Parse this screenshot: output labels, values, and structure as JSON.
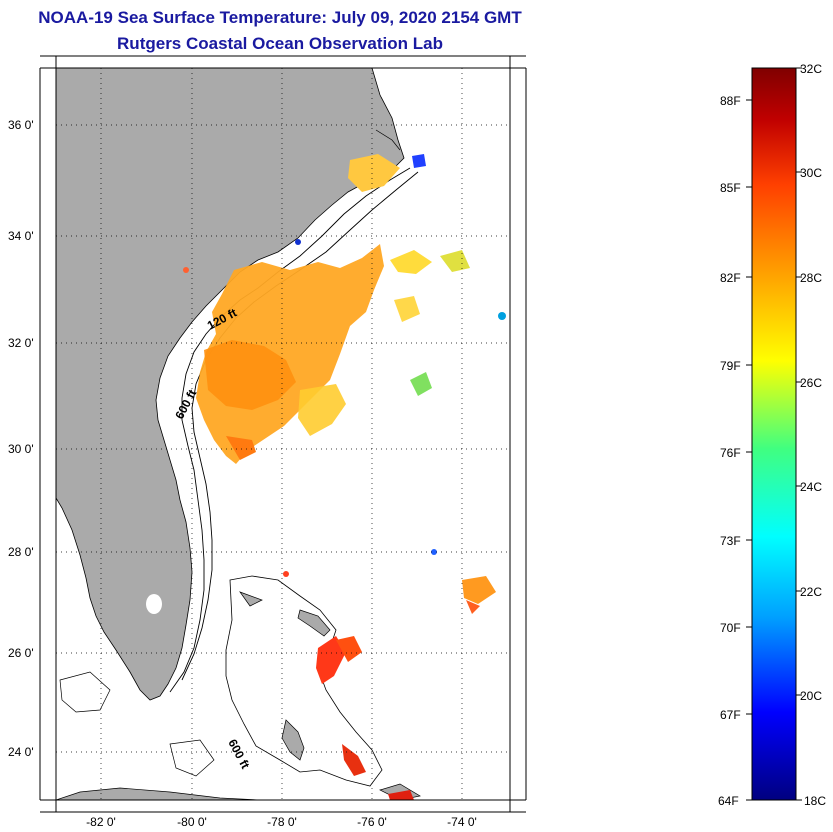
{
  "header": {
    "title": "NOAA-19 Sea Surface Temperature:  July 09, 2020 2154 GMT",
    "subtitle": "Rutgers Coastal Ocean Observation Lab"
  },
  "axes": {
    "lat_labels": [
      "36 0'",
      "34 0'",
      "32 0'",
      "30 0'",
      "28 0'",
      "26 0'",
      "24 0'"
    ],
    "lon_labels": [
      "-82 0'",
      "-80 0'",
      "-78 0'",
      "-76 0'",
      "-74 0'"
    ]
  },
  "contours": {
    "label_120": "120 ft",
    "label_600a": "600 ft",
    "label_600b": "600 ft"
  },
  "colorbar": {
    "celsius": [
      "32C",
      "30C",
      "28C",
      "26C",
      "24C",
      "22C",
      "20C",
      "18C"
    ],
    "fahrenheit": [
      "88F",
      "85F",
      "82F",
      "79F",
      "76F",
      "73F",
      "70F",
      "67F",
      "64F"
    ],
    "range_c": [
      18,
      32
    ],
    "palette": [
      "#000080",
      "#0000ff",
      "#00a0ff",
      "#00ffff",
      "#40ff80",
      "#ffff00",
      "#ffa000",
      "#ff4000",
      "#c00000",
      "#800000"
    ]
  },
  "colors": {
    "land": "#aaaaaa",
    "title": "#1a1aa0"
  }
}
